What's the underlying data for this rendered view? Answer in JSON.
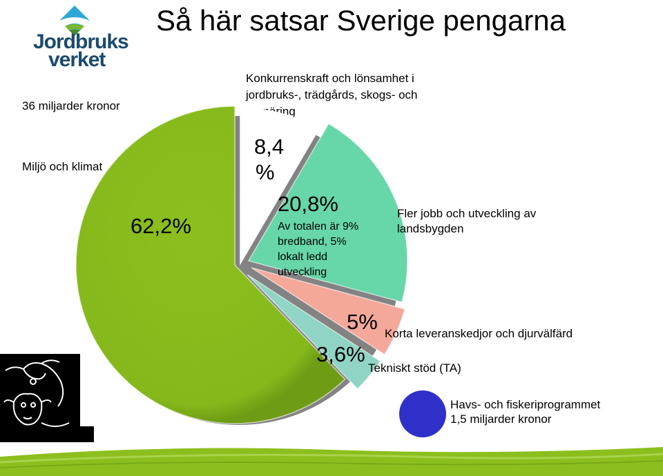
{
  "title": "Så här satsar Sverige pengarna",
  "logo": {
    "name_line1": "Jordbruks",
    "name_line2": "verket"
  },
  "colors": {
    "green": "#8cbf1e",
    "mint": "#67d6a8",
    "salmon": "#f4a89a",
    "small": "#8fd4c4",
    "fish": "#2e30c9",
    "band": "#8cbf1e"
  },
  "labels": {
    "total": "36 miljarder kronor",
    "left_series": "Miljö och klimat",
    "top_series": "Konkurrenskraft och lönsamhet i jordbruks-, trädgårds, skogs- och rennäring",
    "right_series": "Fler jobb och utveckling av landsbygden",
    "mid_series": "Korta leveranskedjor och djurvälfärd",
    "small_series": "Tekniskt stöd  (TA)",
    "fish_line1": "Havs- och fiskeriprogrammet",
    "fish_line2": "1,5 miljarder kronor"
  },
  "chart_data": {
    "type": "pie",
    "title": "Så här satsar Sverige pengarna",
    "slices": [
      {
        "name": "Miljö och klimat",
        "label": "62,2%",
        "value": 62.2,
        "color": "#8cbf1e"
      },
      {
        "name": "Konkurrenskraft och lönsamhet i jordbruks-, trädgårds, skogs- och rennäring",
        "label_a": "8,4",
        "label_b": "%",
        "value": 8.4,
        "color": "#ffffff"
      },
      {
        "name": "Fler jobb och utveckling av landsbygden",
        "label": "20,8%",
        "note": "Av totalen är 9% bredband, 5% lokalt ledd utveckling",
        "value": 20.8,
        "color": "#67d6a8"
      },
      {
        "name": "Korta leveranskedjor och djurvälfärd",
        "label": "5%",
        "value": 5,
        "color": "#f4a89a"
      },
      {
        "name": "Tekniskt stöd  (TA)",
        "label": "3,6%",
        "value": 3.6,
        "color": "#8fd4c4"
      }
    ]
  }
}
